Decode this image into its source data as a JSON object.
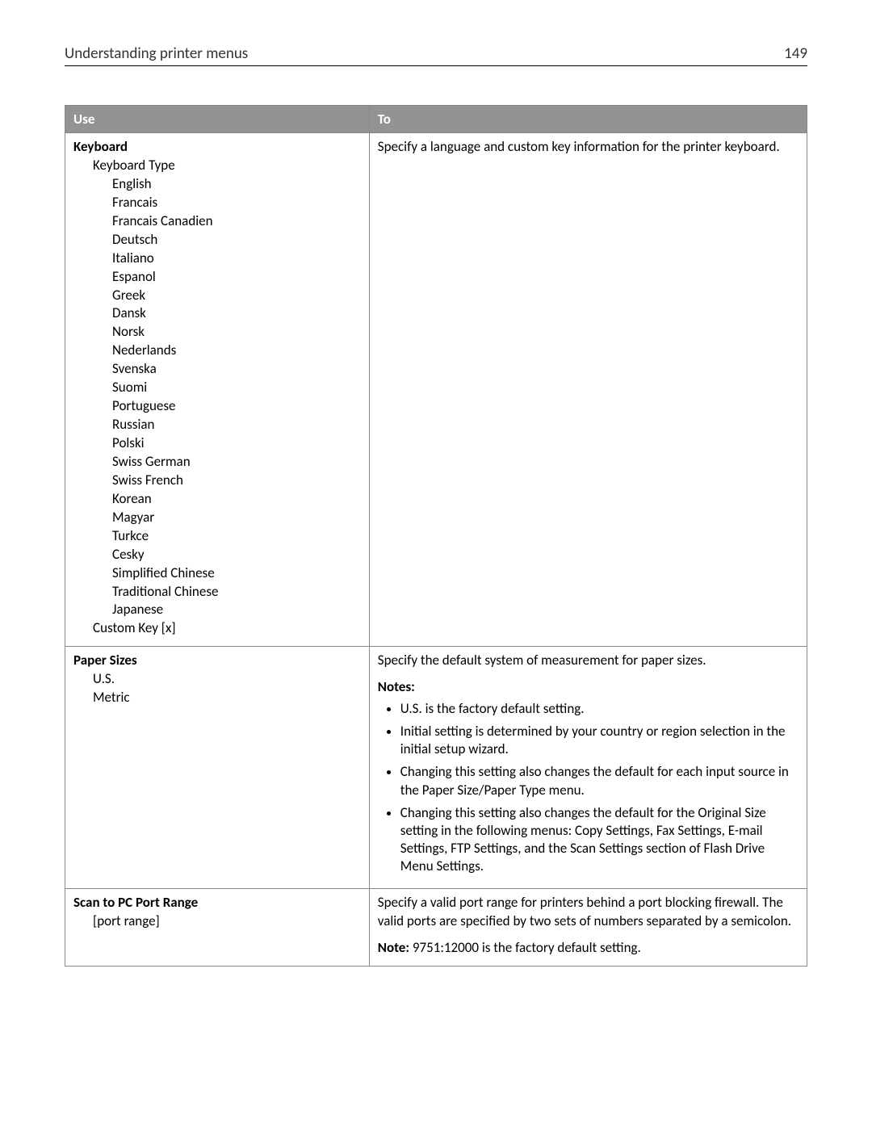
{
  "header": {
    "title": "Understanding printer menus",
    "page_number": "149"
  },
  "table": {
    "columns": {
      "use": "Use",
      "to": "To"
    },
    "row1": {
      "title": "Keyboard",
      "subtitle": "Keyboard Type",
      "languages": [
        "English",
        "Francais",
        "Francais Canadien",
        "Deutsch",
        "Italiano",
        "Espanol",
        "Greek",
        "Dansk",
        "Norsk",
        "Nederlands",
        "Svenska",
        "Suomi",
        "Portuguese",
        "Russian",
        "Polski",
        "Swiss German",
        "Swiss French",
        "Korean",
        "Magyar",
        "Turkce",
        "Cesky",
        "Simplified Chinese",
        "Traditional Chinese",
        "Japanese"
      ],
      "custom_key": "Custom Key [x]",
      "to": "Specify a language and custom key information for the printer keyboard."
    },
    "row2": {
      "title": "Paper Sizes",
      "options": [
        "U.S.",
        "Metric"
      ],
      "to_intro": "Specify the default system of measurement for paper sizes.",
      "notes_label": "Notes:",
      "notes": [
        "U.S. is the factory default setting.",
        "Initial setting is determined by your country or region selection in the initial setup wizard.",
        "Changing this setting also changes the default for each input source in the Paper Size/Paper Type menu.",
        "Changing this setting also changes the default for the Original Size setting in the following menus: Copy Settings, Fax Settings, E-mail Settings, FTP Settings, and the Scan Settings section of Flash Drive Menu Settings."
      ]
    },
    "row3": {
      "title": "Scan to PC Port Range",
      "option": "[port range]",
      "to_p1": "Specify a valid port range for printers behind a port blocking firewall. The valid ports are specified by two sets of numbers separated by a semicolon.",
      "note_label": "Note:",
      "note_text": "9751:12000 is the factory default setting."
    }
  }
}
